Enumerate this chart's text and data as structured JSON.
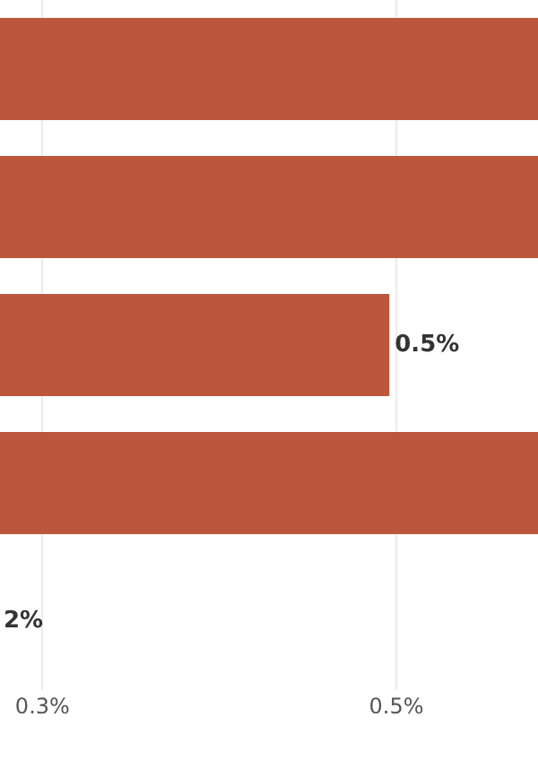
{
  "chart_data": {
    "type": "bar",
    "orientation": "horizontal",
    "categories": [
      null,
      null,
      null,
      null,
      null
    ],
    "values": [
      0.6,
      0.6,
      0.495,
      0.6,
      null
    ],
    "value_labels": [
      null,
      null,
      "0.5%",
      null,
      null
    ],
    "color": "#bc573d",
    "xlim": [
      0.22,
      0.6
    ],
    "xticks": [
      {
        "value": 0.25,
        "label": "0.3%"
      },
      {
        "value": 0.5,
        "label": "0.5%"
      }
    ],
    "grid": "x",
    "annotations": [
      "2%"
    ]
  }
}
